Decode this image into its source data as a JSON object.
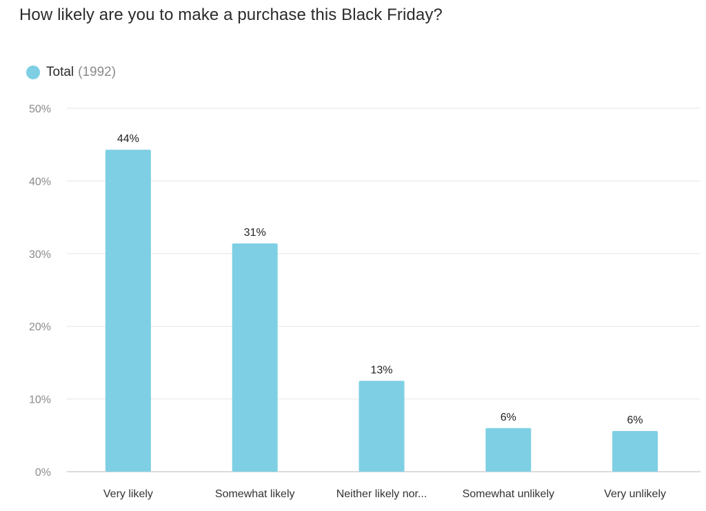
{
  "title": "How likely are you to make a purchase this Black Friday?",
  "legend": {
    "label": "Total",
    "count": "(1992)"
  },
  "colors": {
    "bar": "#7ecfe4",
    "grid": "#e6e6e6",
    "axis": "#cfcfcf"
  },
  "chart_data": {
    "type": "bar",
    "title": "How likely are you to make a purchase this Black Friday?",
    "categories": [
      "Very likely",
      "Somewhat likely",
      "Neither likely nor...",
      "Somewhat unlikely",
      "Very unlikely"
    ],
    "series": [
      {
        "name": "Total",
        "values": [
          44.3,
          31.4,
          12.5,
          6.0,
          5.6
        ]
      }
    ],
    "data_labels": [
      "44%",
      "31%",
      "13%",
      "6%",
      "6%"
    ],
    "ylim": [
      0,
      50
    ],
    "yticks": [
      0,
      10,
      20,
      30,
      40,
      50
    ],
    "ytick_labels": [
      "0%",
      "10%",
      "20%",
      "30%",
      "40%",
      "50%"
    ],
    "grid": true,
    "legend_position": "top-left"
  }
}
